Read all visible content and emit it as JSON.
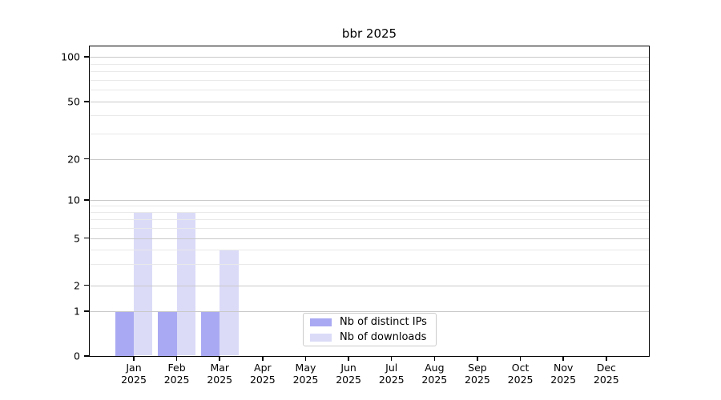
{
  "chart_data": {
    "type": "bar",
    "title": "bbr 2025",
    "categories": [
      "Jan",
      "Feb",
      "Mar",
      "Apr",
      "May",
      "Jun",
      "Jul",
      "Aug",
      "Sep",
      "Oct",
      "Nov",
      "Dec"
    ],
    "x_year_label": "2025",
    "series": [
      {
        "name": "Nb of distinct IPs",
        "color": "#a9a9f3",
        "values": [
          1,
          1,
          1,
          0,
          0,
          0,
          0,
          0,
          0,
          0,
          0,
          0
        ]
      },
      {
        "name": "Nb of downloads",
        "color": "#dbdbf8",
        "values": [
          8,
          8,
          4,
          0,
          0,
          0,
          0,
          0,
          0,
          0,
          0,
          0
        ]
      }
    ],
    "y_axis": {
      "scale": "log-like",
      "range": [
        0,
        100
      ],
      "major_ticks": [
        0,
        1,
        2,
        5,
        10,
        20,
        50,
        100
      ],
      "minor_gridlines": [
        3,
        4,
        6,
        7,
        8,
        9,
        30,
        40,
        60,
        70,
        80,
        90
      ]
    },
    "legend_position": "bottom-center-inside",
    "grid": true,
    "colors": {
      "axis": "#000000",
      "grid_major": "#c9c9c9",
      "grid_minor": "#e9e9e9",
      "background": "#ffffff"
    }
  }
}
